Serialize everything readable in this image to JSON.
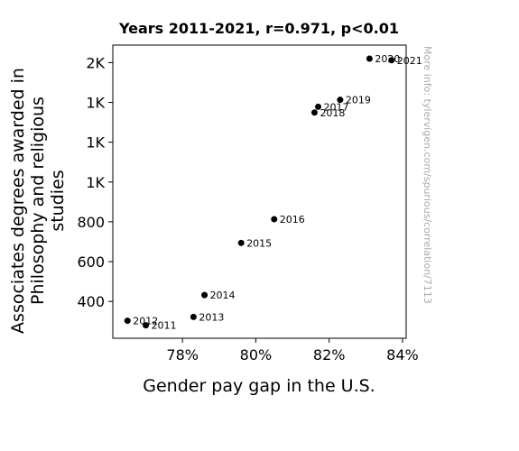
{
  "chart_data": {
    "type": "scatter",
    "title": "Years 2011-2021, r=0.971, p<0.01",
    "xlabel": "Gender pay gap in the U.S.",
    "ylabel_lines": [
      "Associates degrees awarded in",
      "Philosophy and religious",
      "studies"
    ],
    "x_ticks": [
      {
        "value": 78,
        "label": "78%"
      },
      {
        "value": 80,
        "label": "80%"
      },
      {
        "value": 82,
        "label": "82%"
      },
      {
        "value": 84,
        "label": "84%"
      }
    ],
    "y_ticks": [
      {
        "value": 400,
        "label": "400"
      },
      {
        "value": 600,
        "label": "600"
      },
      {
        "value": 800,
        "label": "800"
      },
      {
        "value": 1000,
        "label": "1K"
      },
      {
        "value": 1200,
        "label": "1K"
      },
      {
        "value": 1400,
        "label": "1K"
      },
      {
        "value": 1600,
        "label": "2K"
      }
    ],
    "xlim": [
      76.1,
      84.1
    ],
    "ylim": [
      215,
      1688
    ],
    "points": [
      {
        "label": "2011",
        "x": 77.0,
        "y": 280
      },
      {
        "label": "2012",
        "x": 76.5,
        "y": 303
      },
      {
        "label": "2013",
        "x": 78.3,
        "y": 322
      },
      {
        "label": "2014",
        "x": 78.6,
        "y": 432
      },
      {
        "label": "2015",
        "x": 79.6,
        "y": 694
      },
      {
        "label": "2016",
        "x": 80.5,
        "y": 813
      },
      {
        "label": "2017",
        "x": 81.7,
        "y": 1378
      },
      {
        "label": "2018",
        "x": 81.6,
        "y": 1349
      },
      {
        "label": "2019",
        "x": 82.3,
        "y": 1413
      },
      {
        "label": "2020",
        "x": 83.1,
        "y": 1620
      },
      {
        "label": "2021",
        "x": 83.7,
        "y": 1612
      }
    ],
    "grid": false,
    "legend": "none",
    "point_color": "#000000"
  },
  "watermark": "More info: tylervigen.com/spurious/correlation/7113"
}
